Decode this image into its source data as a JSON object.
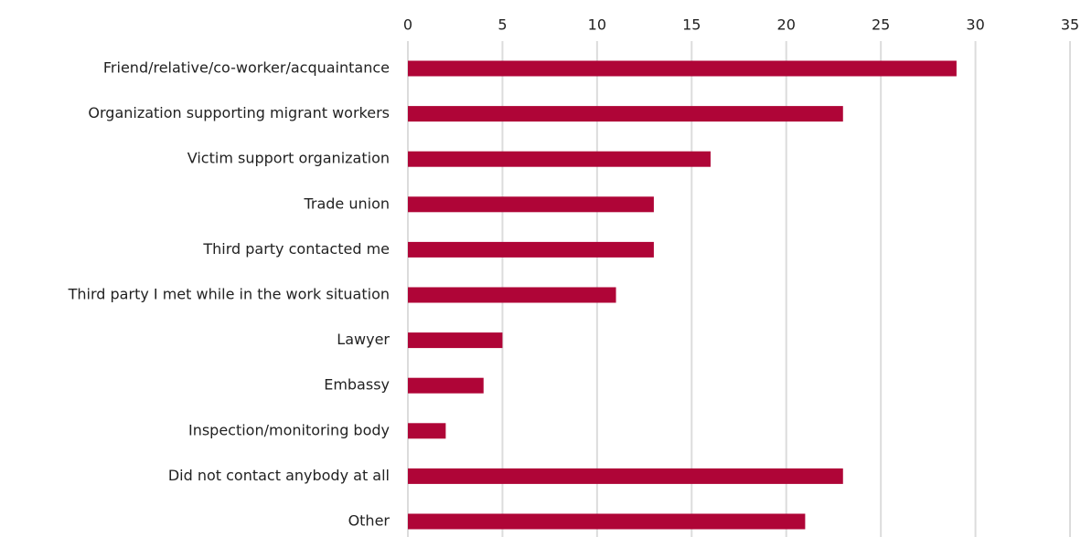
{
  "chart_data": {
    "type": "bar",
    "orientation": "horizontal",
    "categories": [
      "Friend/relative/co-worker/acquaintance",
      "Organization supporting migrant workers",
      "Victim support organization",
      "Trade union",
      "Third party contacted me",
      "Third party I met while in the work situation",
      "Lawyer",
      "Embassy",
      "Inspection/monitoring body",
      "Did not contact anybody at all",
      "Other"
    ],
    "values": [
      29,
      23,
      16,
      13,
      13,
      11,
      5,
      4,
      2,
      23,
      21
    ],
    "color": "#af0537",
    "xlim": [
      0,
      35
    ],
    "xticks": [
      0,
      5,
      10,
      15,
      20,
      25,
      30,
      35
    ],
    "grid": true
  }
}
